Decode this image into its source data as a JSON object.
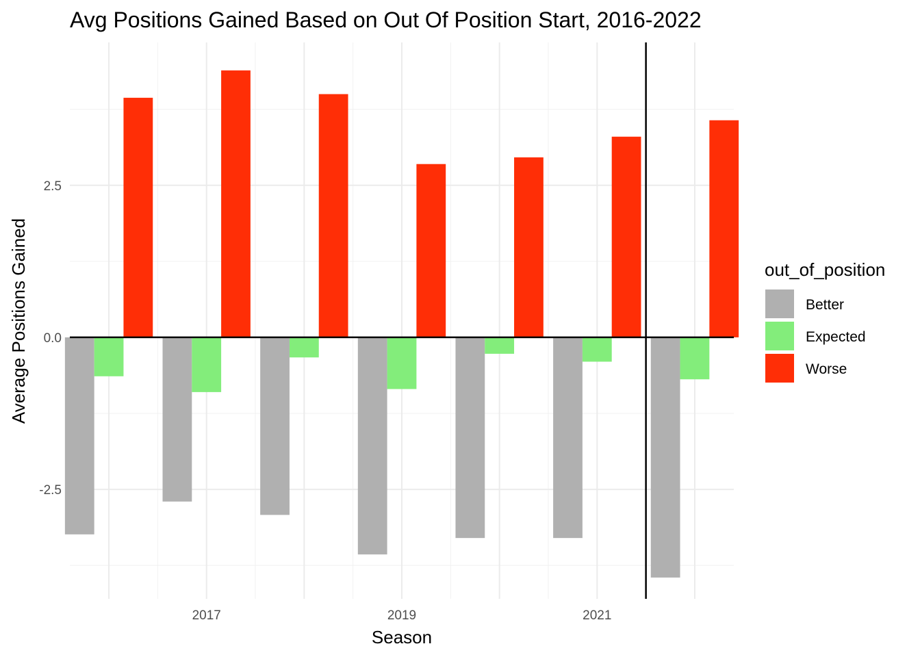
{
  "chart_data": {
    "type": "bar",
    "title": "Avg Positions Gained Based on Out Of Position Start, 2016-2022",
    "xlabel": "Season",
    "ylabel": "Average Positions Gained",
    "categories": [
      2016,
      2017,
      2018,
      2019,
      2020,
      2021,
      2022
    ],
    "x_ticks": [
      2017,
      2019,
      2021
    ],
    "x_range": [
      2015.6,
      2022.4
    ],
    "y_ticks": [
      -2.5,
      0.0,
      2.5
    ],
    "y_tick_labels": [
      "-2.5",
      "0.0",
      "2.5"
    ],
    "ylim": [
      -4.3,
      4.85
    ],
    "vertical_reference_line": 2021.5,
    "horizontal_reference_line": 0,
    "grid": true,
    "legend_position": "right",
    "legend_title": "out_of_position",
    "series": [
      {
        "name": "Better",
        "color": "#b0b0b0",
        "values": [
          -3.24,
          -2.7,
          -2.92,
          -3.57,
          -3.3,
          -3.3,
          -3.95
        ]
      },
      {
        "name": "Expected",
        "color": "#83ed7b",
        "values": [
          -0.64,
          -0.9,
          -0.33,
          -0.85,
          -0.27,
          -0.4,
          -0.69
        ]
      },
      {
        "name": "Worse",
        "color": "#ff2e06",
        "values": [
          3.94,
          4.39,
          4.0,
          2.85,
          2.96,
          3.3,
          3.57
        ]
      }
    ]
  }
}
